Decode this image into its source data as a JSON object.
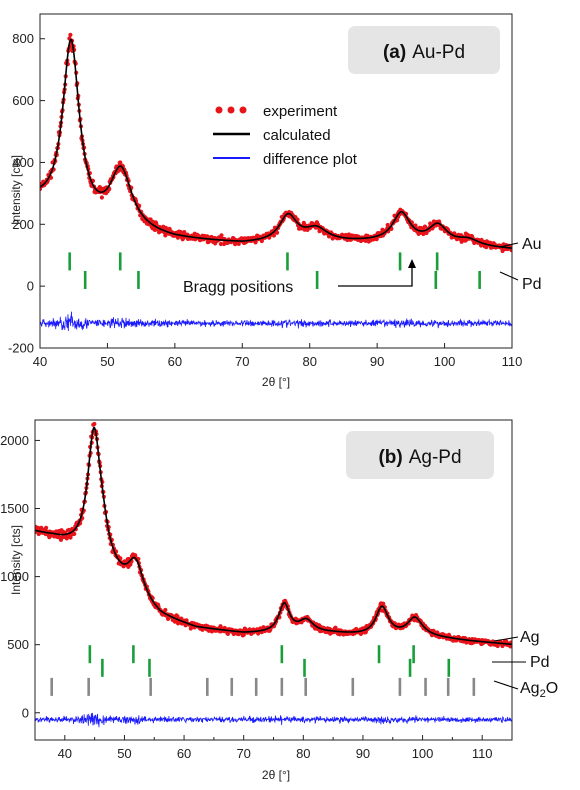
{
  "chart_data": [
    {
      "type": "line",
      "panel_label_bold": "(a)",
      "panel_label_text": "Au-Pd",
      "xlabel": "2θ [°]",
      "ylabel": "Intensity [cts]",
      "xlim": [
        40,
        110
      ],
      "ylim": [
        -200,
        880
      ],
      "x_ticks": [
        40,
        50,
        60,
        70,
        80,
        90,
        100,
        110
      ],
      "y_ticks": [
        -200,
        0,
        200,
        400,
        600,
        800
      ],
      "legend": {
        "position": "upper-middle",
        "entries": [
          {
            "label": "experiment",
            "color": "#e8141b",
            "style": "dots"
          },
          {
            "label": "calculated",
            "color": "#000000",
            "style": "line"
          },
          {
            "label": "difference plot",
            "color": "#1a1aff",
            "style": "line"
          }
        ]
      },
      "series": [
        {
          "name": "experiment",
          "color": "#e8141b"
        },
        {
          "name": "calculated",
          "color": "#000000"
        },
        {
          "name": "difference plot",
          "color": "#1a1aff"
        }
      ],
      "profile": {
        "background": [
          [
            40,
            260
          ],
          [
            45,
            205
          ],
          [
            50,
            180
          ],
          [
            55,
            165
          ],
          [
            60,
            150
          ],
          [
            70,
            135
          ],
          [
            80,
            140
          ],
          [
            90,
            140
          ],
          [
            100,
            130
          ],
          [
            110,
            118
          ]
        ],
        "peaks": [
          [
            44.6,
            575,
            1.5
          ],
          [
            52.0,
            190,
            2.0
          ],
          [
            76.8,
            85,
            1.6
          ],
          [
            81.0,
            40,
            2.0
          ],
          [
            93.6,
            95,
            1.6
          ],
          [
            99.0,
            60,
            1.7
          ],
          [
            103.5,
            20,
            2.0
          ]
        ]
      },
      "difference_baseline": -120,
      "bragg_positions": [
        {
          "phase": "Au",
          "color": "#1a9e3a",
          "y": 80,
          "positions": [
            44.4,
            51.9,
            76.7,
            93.4,
            98.9
          ]
        },
        {
          "phase": "Pd",
          "color": "#1a9e3a",
          "y": 20,
          "positions": [
            46.7,
            54.6,
            81.1,
            98.7,
            105.2
          ]
        }
      ],
      "annotation": {
        "text": "Bragg positions",
        "x_data": 93.6
      }
    },
    {
      "type": "line",
      "panel_label_bold": "(b)",
      "panel_label_text": "Ag-Pd",
      "xlabel": "2θ [°]",
      "ylabel": "Intensity [cts]",
      "xlim": [
        35,
        115
      ],
      "ylim": [
        -200,
        2150
      ],
      "x_ticks": [
        40,
        50,
        60,
        70,
        80,
        90,
        100,
        110
      ],
      "x_minor_ticks": [
        35,
        45,
        55,
        65,
        75,
        85,
        95,
        105,
        115
      ],
      "y_ticks": [
        0,
        500,
        1000,
        1500,
        2000
      ],
      "series": [
        {
          "name": "experiment",
          "color": "#e8141b"
        },
        {
          "name": "calculated",
          "color": "#000000"
        },
        {
          "name": "difference plot",
          "color": "#1a1aff"
        }
      ],
      "profile": {
        "background": [
          [
            35,
            1320
          ],
          [
            38,
            1280
          ],
          [
            41,
            1220
          ],
          [
            44,
            1150
          ],
          [
            48,
            1000
          ],
          [
            52,
            820
          ],
          [
            56,
            700
          ],
          [
            62,
            620
          ],
          [
            70,
            580
          ],
          [
            78,
            580
          ],
          [
            85,
            580
          ],
          [
            92,
            560
          ],
          [
            100,
            560
          ],
          [
            108,
            525
          ],
          [
            115,
            500
          ]
        ],
        "peaks": [
          [
            44.9,
            900,
            1.3
          ],
          [
            46.3,
            150,
            1.2
          ],
          [
            51.9,
            270,
            1.6
          ],
          [
            76.8,
            210,
            1.1
          ],
          [
            80.5,
            90,
            1.5
          ],
          [
            93.2,
            210,
            1.3
          ],
          [
            98.7,
            130,
            1.5
          ]
        ]
      },
      "difference_baseline": -50,
      "bragg_positions": [
        {
          "phase": "Ag",
          "color": "#1a9e3a",
          "y": 430,
          "positions": [
            44.2,
            51.5,
            76.4,
            92.7,
            98.5
          ]
        },
        {
          "phase": "Pd",
          "color": "#1a9e3a",
          "y": 330,
          "positions": [
            46.3,
            54.2,
            80.2,
            97.9,
            104.4
          ]
        },
        {
          "phase": "Ag2O",
          "phase_display": {
            "main": "Ag",
            "sub": "2",
            "tail": "O"
          },
          "color": "#888888",
          "y": 190,
          "positions": [
            37.8,
            44.0,
            54.4,
            63.9,
            68.0,
            72.1,
            76.4,
            80.4,
            88.3,
            96.2,
            100.5,
            104.3,
            108.6
          ]
        }
      ]
    }
  ]
}
